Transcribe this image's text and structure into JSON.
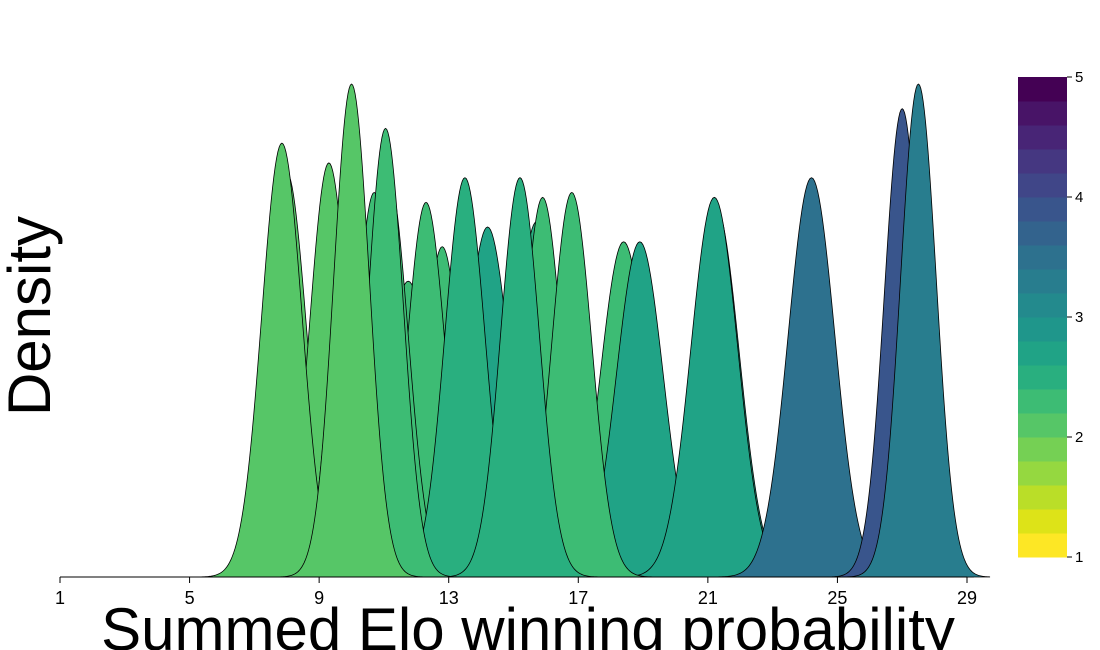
{
  "chart_data": {
    "type": "area",
    "xlabel": "Summed Elo winning probability",
    "ylabel": "Density",
    "xlim": [
      1,
      29
    ],
    "x_ticks": [
      "1",
      "5",
      "9",
      "13",
      "17",
      "21",
      "25",
      "29"
    ],
    "grid": false,
    "colorbar": {
      "min": 1,
      "max": 5,
      "ticks": [
        "1",
        "2",
        "3",
        "4",
        "5"
      ],
      "colors": [
        "#fde725",
        "#dde318",
        "#bade28",
        "#95d840",
        "#75d054",
        "#56c667",
        "#3dbc74",
        "#29af7f",
        "#20a386",
        "#1f968b",
        "#238a8d",
        "#287d8e",
        "#2d718e",
        "#33638d",
        "#39558c",
        "#404688",
        "#453781",
        "#482576",
        "#481467",
        "#440154"
      ]
    },
    "series": [
      {
        "mean": 7.85,
        "peak": 0.88,
        "sd": 0.62,
        "color_value": 2.05
      },
      {
        "mean": 8.0,
        "peak": 0.82,
        "sd": 0.62,
        "color_value": 2.05
      },
      {
        "mean": 9.3,
        "peak": 0.84,
        "sd": 0.6,
        "color_value": 2.15
      },
      {
        "mean": 9.75,
        "peak": 0.77,
        "sd": 0.6,
        "color_value": 2.2
      },
      {
        "mean": 9.95,
        "peak": 0.85,
        "sd": 0.55,
        "color_value": 2.15
      },
      {
        "mean": 10.0,
        "peak": 1.0,
        "sd": 0.55,
        "color_value": 2.1
      },
      {
        "mean": 10.7,
        "peak": 0.78,
        "sd": 0.58,
        "color_value": 2.25
      },
      {
        "mean": 10.9,
        "peak": 0.68,
        "sd": 0.72,
        "color_value": 2.3
      },
      {
        "mean": 11.05,
        "peak": 0.91,
        "sd": 0.55,
        "color_value": 2.2
      },
      {
        "mean": 11.15,
        "peak": 0.81,
        "sd": 0.6,
        "color_value": 2.3
      },
      {
        "mean": 11.75,
        "peak": 0.6,
        "sd": 0.75,
        "color_value": 2.35
      },
      {
        "mean": 12.3,
        "peak": 0.76,
        "sd": 0.6,
        "color_value": 2.25
      },
      {
        "mean": 12.5,
        "peak": 0.53,
        "sd": 0.75,
        "color_value": 2.4
      },
      {
        "mean": 12.8,
        "peak": 0.56,
        "sd": 0.72,
        "color_value": 2.45
      },
      {
        "mean": 12.8,
        "peak": 0.67,
        "sd": 0.6,
        "color_value": 2.35
      },
      {
        "mean": 13.5,
        "peak": 0.81,
        "sd": 0.62,
        "color_value": 2.55
      },
      {
        "mean": 14.2,
        "peak": 0.71,
        "sd": 0.7,
        "color_value": 2.7
      },
      {
        "mean": 15.1,
        "peak": 0.62,
        "sd": 0.72,
        "color_value": 2.55
      },
      {
        "mean": 15.2,
        "peak": 0.81,
        "sd": 0.6,
        "color_value": 2.45
      },
      {
        "mean": 15.7,
        "peak": 0.72,
        "sd": 0.65,
        "color_value": 2.4
      },
      {
        "mean": 15.9,
        "peak": 0.77,
        "sd": 0.6,
        "color_value": 2.35
      },
      {
        "mean": 16.8,
        "peak": 0.78,
        "sd": 0.62,
        "color_value": 2.2
      },
      {
        "mean": 18.4,
        "peak": 0.68,
        "sd": 0.72,
        "color_value": 2.35
      },
      {
        "mean": 18.9,
        "peak": 0.68,
        "sd": 0.72,
        "color_value": 2.6
      },
      {
        "mean": 21.2,
        "peak": 0.77,
        "sd": 0.72,
        "color_value": 2.7
      },
      {
        "mean": 21.25,
        "peak": 0.75,
        "sd": 0.72,
        "color_value": 2.75
      },
      {
        "mean": 24.2,
        "peak": 0.81,
        "sd": 0.72,
        "color_value": 3.55
      },
      {
        "mean": 27.0,
        "peak": 0.95,
        "sd": 0.55,
        "color_value": 3.85
      },
      {
        "mean": 27.5,
        "peak": 1.0,
        "sd": 0.55,
        "color_value": 3.2
      }
    ]
  }
}
